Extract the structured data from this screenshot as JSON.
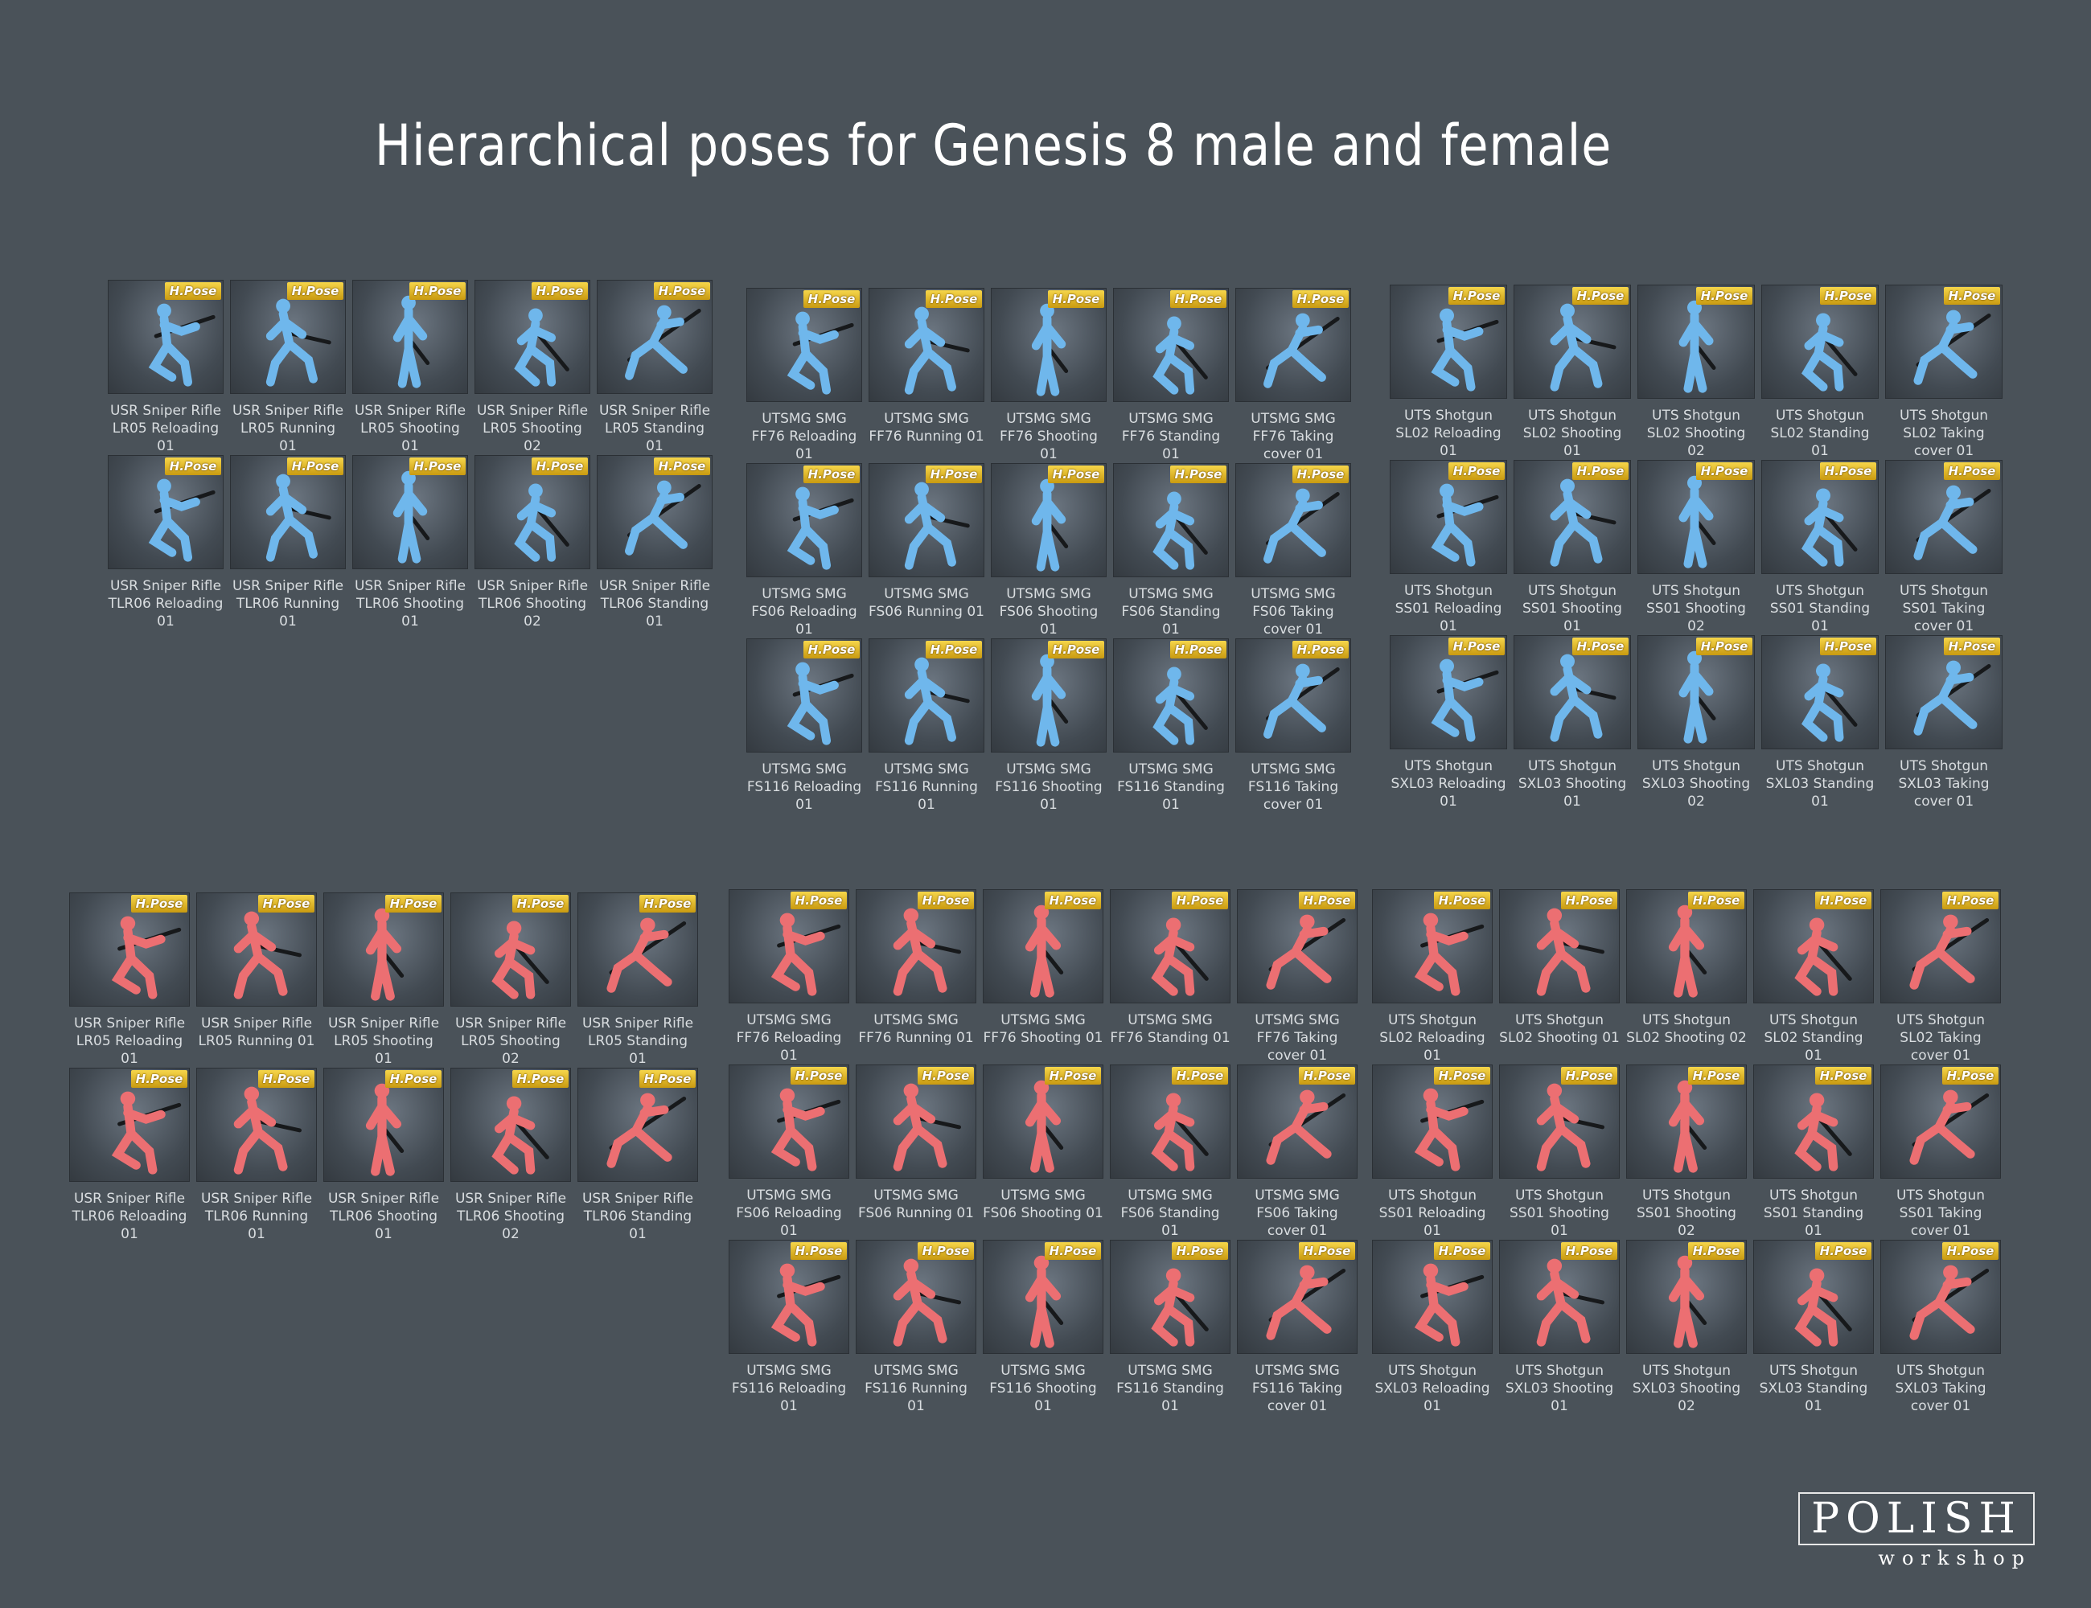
{
  "title": "Hierarchical poses for Genesis 8 male and female",
  "badge_label": "H.Pose",
  "colors": {
    "male": "#6fb7ec",
    "female": "#ec6f72",
    "background": "#4a5259"
  },
  "logo": {
    "word": "POLISH",
    "sub": "workshop"
  },
  "male_sniper": [
    "USR Sniper Rifle LR05 Reloading 01",
    "USR Sniper Rifle LR05 Running 01",
    "USR Sniper Rifle LR05 Shooting 01",
    "USR Sniper Rifle LR05 Shooting 02",
    "USR Sniper Rifle LR05 Standing 01",
    "USR Sniper Rifle TLR06 Reloading 01",
    "USR Sniper Rifle TLR06 Running 01",
    "USR Sniper Rifle TLR06 Shooting 01",
    "USR Sniper Rifle TLR06 Shooting 02",
    "USR Sniper Rifle TLR06 Standing 01"
  ],
  "male_smg": [
    "UTSMG SMG FF76 Reloading 01",
    "UTSMG SMG FF76 Running 01",
    "UTSMG SMG FF76 Shooting 01",
    "UTSMG SMG FF76 Standing 01",
    "UTSMG SMG FF76 Taking cover 01",
    "UTSMG SMG FS06 Reloading 01",
    "UTSMG SMG FS06 Running 01",
    "UTSMG SMG FS06 Shooting 01",
    "UTSMG SMG FS06 Standing 01",
    "UTSMG SMG FS06 Taking cover 01",
    "UTSMG SMG FS116 Reloading 01",
    "UTSMG SMG FS116 Running 01",
    "UTSMG SMG FS116 Shooting 01",
    "UTSMG SMG FS116 Standing 01",
    "UTSMG SMG FS116 Taking cover 01"
  ],
  "male_shotgun": [
    "UTS Shotgun SL02 Reloading 01",
    "UTS Shotgun SL02 Shooting 01",
    "UTS Shotgun SL02 Shooting 02",
    "UTS Shotgun SL02 Standing 01",
    "UTS Shotgun SL02 Taking cover 01",
    "UTS Shotgun SS01 Reloading 01",
    "UTS Shotgun SS01 Shooting 01",
    "UTS Shotgun SS01 Shooting 02",
    "UTS Shotgun SS01 Standing 01",
    "UTS Shotgun SS01 Taking cover 01",
    "UTS Shotgun SXL03 Reloading 01",
    "UTS Shotgun SXL03 Shooting 01",
    "UTS Shotgun SXL03 Shooting 02",
    "UTS Shotgun SXL03 Standing 01",
    "UTS Shotgun SXL03 Taking cover 01"
  ],
  "female_sniper": [
    "USR Sniper Rifle LR05 Reloading 01",
    "USR Sniper Rifle LR05 Running 01",
    "USR Sniper Rifle LR05 Shooting 01",
    "USR Sniper Rifle LR05 Shooting 02",
    "USR Sniper Rifle LR05 Standing 01",
    "USR Sniper Rifle TLR06 Reloading 01",
    "USR Sniper Rifle TLR06 Running 01",
    "USR Sniper Rifle TLR06 Shooting 01",
    "USR Sniper Rifle TLR06 Shooting 02",
    "USR Sniper Rifle TLR06 Standing 01"
  ],
  "female_smg": [
    "UTSMG SMG FF76 Reloading 01",
    "UTSMG SMG FF76 Running 01",
    "UTSMG SMG FF76 Shooting 01",
    "UTSMG SMG FF76 Standing 01",
    "UTSMG SMG FF76 Taking cover 01",
    "UTSMG SMG FS06 Reloading 01",
    "UTSMG SMG FS06 Running 01",
    "UTSMG SMG FS06 Shooting 01",
    "UTSMG SMG FS06 Standing 01",
    "UTSMG SMG FS06 Taking cover 01",
    "UTSMG SMG FS116 Reloading 01",
    "UTSMG SMG FS116 Running 01",
    "UTSMG SMG FS116 Shooting 01",
    "UTSMG SMG FS116 Standing 01",
    "UTSMG SMG FS116 Taking cover 01"
  ],
  "female_shotgun": [
    "UTS Shotgun SL02 Reloading 01",
    "UTS Shotgun SL02 Shooting 01",
    "UTS Shotgun SL02 Shooting 02",
    "UTS Shotgun SL02 Standing 01",
    "UTS Shotgun SL02 Taking cover 01",
    "UTS Shotgun SS01 Reloading 01",
    "UTS Shotgun SS01 Shooting 01",
    "UTS Shotgun SS01 Shooting 02",
    "UTS Shotgun SS01 Standing 01",
    "UTS Shotgun SS01 Taking cover 01",
    "UTS Shotgun SXL03 Reloading 01",
    "UTS Shotgun SXL03 Shooting 01",
    "UTS Shotgun SXL03 Shooting 02",
    "UTS Shotgun SXL03 Standing 01",
    "UTS Shotgun SXL03 Taking cover 01"
  ]
}
